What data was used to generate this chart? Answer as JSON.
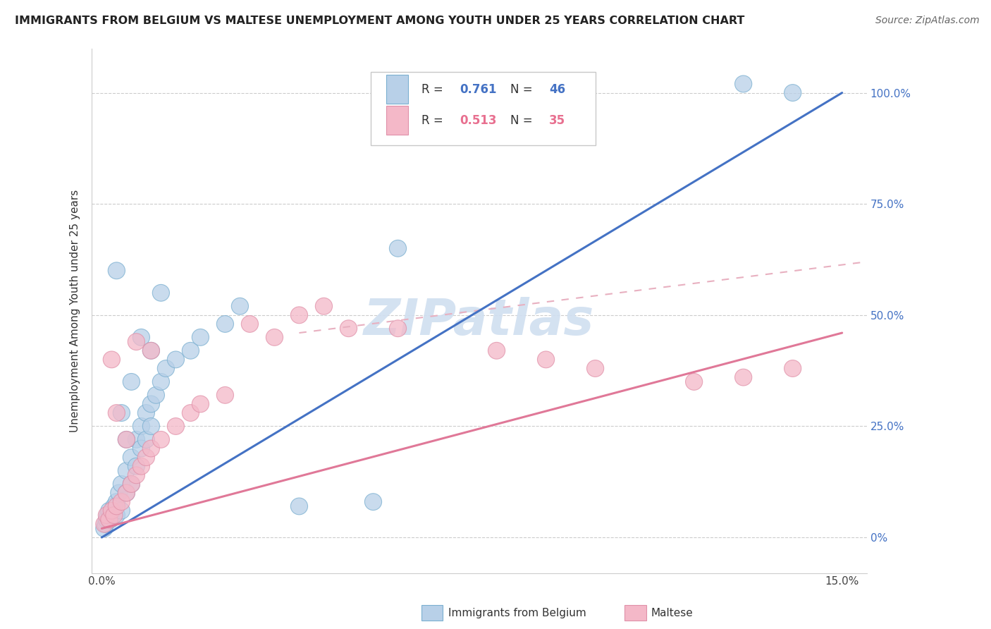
{
  "title": "IMMIGRANTS FROM BELGIUM VS MALTESE UNEMPLOYMENT AMONG YOUTH UNDER 25 YEARS CORRELATION CHART",
  "source": "Source: ZipAtlas.com",
  "ylabel": "Unemployment Among Youth under 25 years",
  "xlim": [
    -0.002,
    0.155
  ],
  "ylim": [
    -0.08,
    1.1
  ],
  "xtick_vals": [
    0.0,
    0.03,
    0.06,
    0.09,
    0.12,
    0.15
  ],
  "xtick_labels_show": [
    "0.0%",
    "",
    "",
    "",
    "",
    "15.0%"
  ],
  "ytick_vals": [
    0.0,
    0.25,
    0.5,
    0.75,
    1.0
  ],
  "ytick_labels": [
    "0%",
    "25.0%",
    "50.0%",
    "75.0%",
    "100.0%"
  ],
  "color_blue_fill": "#b8d0e8",
  "color_blue_edge": "#7aafd0",
  "color_pink_fill": "#f4b8c8",
  "color_pink_edge": "#e090a8",
  "color_blue_line": "#4472c4",
  "color_pink_line": "#e07898",
  "color_pink_dash": "#e8b0c0",
  "color_grid": "#cccccc",
  "color_title": "#222222",
  "color_source": "#666666",
  "color_yticklabel": "#4472c4",
  "color_watermark": "#d0dff0",
  "watermark_text": "ZIPatlas",
  "legend_r1": "0.761",
  "legend_n1": "46",
  "legend_r2": "0.513",
  "legend_n2": "35",
  "blue_line_x": [
    0.0,
    0.15
  ],
  "blue_line_y": [
    0.0,
    1.0
  ],
  "pink_solid_line_x": [
    0.0,
    0.15
  ],
  "pink_solid_line_y": [
    0.02,
    0.46
  ],
  "pink_dash_line_x": [
    0.04,
    0.155
  ],
  "pink_dash_line_y": [
    0.46,
    0.62
  ],
  "blue_x": [
    0.0005,
    0.0008,
    0.001,
    0.0012,
    0.0015,
    0.0018,
    0.002,
    0.0022,
    0.0025,
    0.003,
    0.003,
    0.0035,
    0.004,
    0.004,
    0.005,
    0.005,
    0.006,
    0.006,
    0.007,
    0.007,
    0.008,
    0.008,
    0.009,
    0.009,
    0.01,
    0.01,
    0.011,
    0.012,
    0.013,
    0.015,
    0.018,
    0.02,
    0.025,
    0.028,
    0.003,
    0.004,
    0.005,
    0.006,
    0.008,
    0.01,
    0.012,
    0.04,
    0.055,
    0.06,
    0.13,
    0.14
  ],
  "blue_y": [
    0.02,
    0.03,
    0.04,
    0.05,
    0.06,
    0.04,
    0.05,
    0.06,
    0.07,
    0.08,
    0.05,
    0.1,
    0.12,
    0.06,
    0.15,
    0.1,
    0.18,
    0.12,
    0.22,
    0.16,
    0.25,
    0.2,
    0.28,
    0.22,
    0.3,
    0.25,
    0.32,
    0.35,
    0.38,
    0.4,
    0.42,
    0.45,
    0.48,
    0.52,
    0.6,
    0.28,
    0.22,
    0.35,
    0.45,
    0.42,
    0.55,
    0.07,
    0.08,
    0.65,
    1.02,
    1.0
  ],
  "pink_x": [
    0.0005,
    0.001,
    0.0015,
    0.002,
    0.0025,
    0.003,
    0.004,
    0.005,
    0.006,
    0.007,
    0.008,
    0.009,
    0.01,
    0.012,
    0.015,
    0.018,
    0.02,
    0.025,
    0.03,
    0.035,
    0.04,
    0.045,
    0.05,
    0.06,
    0.08,
    0.09,
    0.1,
    0.12,
    0.13,
    0.14,
    0.002,
    0.003,
    0.005,
    0.007,
    0.01
  ],
  "pink_y": [
    0.03,
    0.05,
    0.04,
    0.06,
    0.05,
    0.07,
    0.08,
    0.1,
    0.12,
    0.14,
    0.16,
    0.18,
    0.2,
    0.22,
    0.25,
    0.28,
    0.3,
    0.32,
    0.48,
    0.45,
    0.5,
    0.52,
    0.47,
    0.47,
    0.42,
    0.4,
    0.38,
    0.35,
    0.36,
    0.38,
    0.4,
    0.28,
    0.22,
    0.44,
    0.42
  ]
}
